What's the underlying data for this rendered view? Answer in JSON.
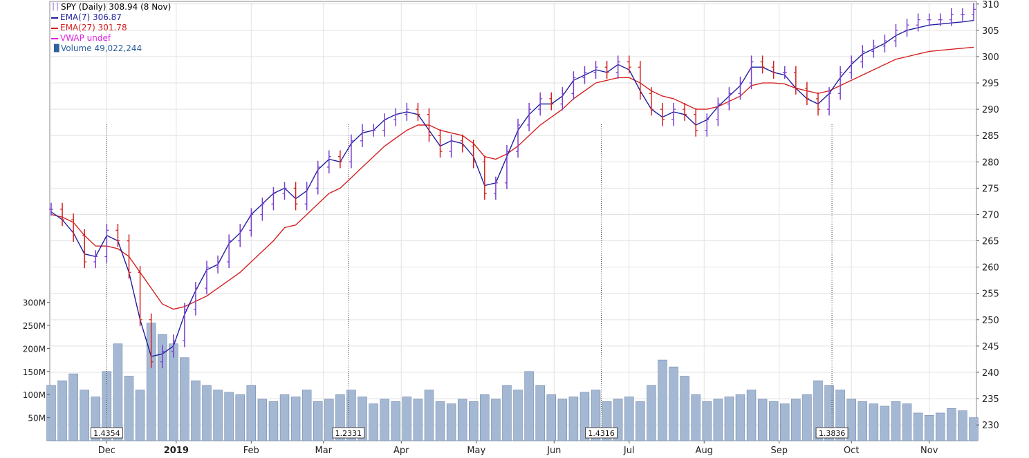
{
  "chart_data": {
    "type": "line",
    "title": "SPY (Daily) 308.94 (8 Nov)",
    "legend": [
      {
        "label": "EMA(7) 306.87",
        "color": "#1f1f9e"
      },
      {
        "label": "EMA(27) 301.78",
        "color": "#d42020"
      },
      {
        "label": "VWAP undef",
        "color": "#e020e0"
      },
      {
        "label": "Volume 49,022,244",
        "color": "#2a5f9e"
      }
    ],
    "x_ticks": [
      "Dec",
      "2019",
      "Feb",
      "Mar",
      "Apr",
      "May",
      "Jun",
      "Jul",
      "Aug",
      "Sep",
      "Oct",
      "Nov"
    ],
    "price_ticks": [
      230,
      235,
      240,
      245,
      250,
      255,
      260,
      265,
      270,
      275,
      280,
      285,
      290,
      295,
      300,
      305,
      310
    ],
    "ylim_price": [
      227,
      310.5
    ],
    "volume_ticks": [
      {
        "value": 50,
        "label": "50M"
      },
      {
        "value": 100,
        "label": "100M"
      },
      {
        "value": 150,
        "label": "150M"
      },
      {
        "value": 200,
        "label": "200M"
      },
      {
        "value": 250,
        "label": "250M"
      },
      {
        "value": 300,
        "label": "300M"
      }
    ],
    "markers": [
      {
        "x": 20.0,
        "label": "1.4354"
      },
      {
        "x": 107.0,
        "label": "1.2331"
      },
      {
        "x": 198.0,
        "label": "1.4316"
      },
      {
        "x": 281.0,
        "label": "1.3836"
      }
    ],
    "price_series": {
      "x": [
        0,
        4,
        8,
        12,
        16,
        20,
        24,
        28,
        32,
        36,
        40,
        44,
        48,
        52,
        56,
        60,
        64,
        68,
        72,
        76,
        80,
        84,
        88,
        92,
        96,
        100,
        104,
        108,
        112,
        116,
        120,
        124,
        128,
        132,
        136,
        140,
        144,
        148,
        152,
        156,
        160,
        164,
        168,
        172,
        176,
        180,
        184,
        188,
        192,
        196,
        200,
        204,
        208,
        212,
        216,
        220,
        224,
        228,
        232,
        236,
        240,
        244,
        248,
        252,
        256,
        260,
        264,
        268,
        272,
        276,
        280,
        284,
        288,
        292,
        296,
        300,
        304,
        308,
        312,
        316,
        320,
        324,
        328,
        332
      ],
      "close": [
        271,
        269,
        266,
        261,
        262,
        267,
        265,
        259,
        250,
        242,
        244,
        246,
        252,
        256,
        260,
        261,
        265,
        267,
        270,
        272,
        274,
        275,
        272,
        275,
        279,
        281,
        280,
        284,
        286,
        286,
        288,
        289,
        290,
        289,
        285,
        282,
        284,
        283,
        280,
        274,
        276,
        282,
        287,
        290,
        292,
        291,
        293,
        296,
        297,
        298,
        297,
        299,
        298,
        293,
        290,
        288,
        290,
        289,
        286,
        288,
        291,
        293,
        295,
        299,
        298,
        297,
        297,
        294,
        292,
        290,
        293,
        297,
        299,
        301,
        302,
        303,
        305,
        306,
        307,
        307,
        307,
        308,
        308,
        309
      ],
      "ema7": [
        270.5,
        269.0,
        266.5,
        262.5,
        262.0,
        266.0,
        265.0,
        259.0,
        250.0,
        243.0,
        243.5,
        245.0,
        251.0,
        255.5,
        259.5,
        260.5,
        264.5,
        266.5,
        270.0,
        272.0,
        274.0,
        275.0,
        273.0,
        274.5,
        278.5,
        280.5,
        280.0,
        283.5,
        285.5,
        286.0,
        288.0,
        289.0,
        289.5,
        289.0,
        286.0,
        283.0,
        284.0,
        283.5,
        281.0,
        275.5,
        276.0,
        281.0,
        286.0,
        289.0,
        291.0,
        291.0,
        292.5,
        295.5,
        296.5,
        297.5,
        297.0,
        298.5,
        297.5,
        293.5,
        290.0,
        288.5,
        289.5,
        289.0,
        287.0,
        288.0,
        290.5,
        292.5,
        294.5,
        298.0,
        298.0,
        297.0,
        296.5,
        294.0,
        292.0,
        291.0,
        293.0,
        296.0,
        298.5,
        300.5,
        301.5,
        302.5,
        304.0,
        305.0,
        305.5,
        306.0,
        306.2,
        306.4,
        306.6,
        306.87
      ],
      "ema27": [
        270.0,
        269.5,
        268.5,
        266.0,
        264.0,
        264.0,
        263.5,
        262.0,
        259.0,
        256.0,
        253.0,
        252.0,
        252.5,
        253.5,
        254.5,
        256.0,
        257.5,
        259.0,
        261.0,
        263.0,
        265.0,
        267.5,
        268.0,
        270.0,
        272.0,
        274.0,
        275.0,
        277.0,
        279.0,
        281.0,
        283.0,
        284.5,
        286.0,
        287.0,
        287.0,
        286.0,
        285.5,
        285.0,
        283.5,
        281.0,
        280.5,
        281.5,
        283.0,
        285.0,
        287.0,
        288.5,
        290.0,
        292.0,
        293.5,
        295.0,
        295.5,
        296.0,
        296.0,
        295.0,
        293.5,
        292.5,
        292.0,
        291.0,
        290.0,
        290.0,
        290.5,
        291.5,
        292.5,
        294.5,
        295.0,
        295.0,
        294.8,
        294.0,
        293.5,
        293.0,
        293.5,
        294.5,
        295.5,
        296.5,
        297.5,
        298.5,
        299.5,
        300.0,
        300.5,
        301.0,
        301.2,
        301.4,
        301.6,
        301.78
      ]
    },
    "volume_series": [
      120,
      130,
      145,
      110,
      95,
      150,
      210,
      140,
      110,
      255,
      230,
      210,
      180,
      130,
      120,
      110,
      105,
      100,
      120,
      90,
      85,
      100,
      95,
      110,
      85,
      90,
      100,
      110,
      95,
      80,
      90,
      85,
      95,
      90,
      110,
      85,
      80,
      90,
      85,
      100,
      90,
      120,
      110,
      150,
      120,
      100,
      90,
      95,
      105,
      110,
      85,
      90,
      95,
      85,
      120,
      175,
      160,
      140,
      100,
      85,
      90,
      95,
      100,
      110,
      90,
      85,
      80,
      90,
      100,
      130,
      120,
      110,
      90,
      85,
      80,
      75,
      85,
      80,
      60,
      55,
      60,
      70,
      65,
      50
    ]
  }
}
